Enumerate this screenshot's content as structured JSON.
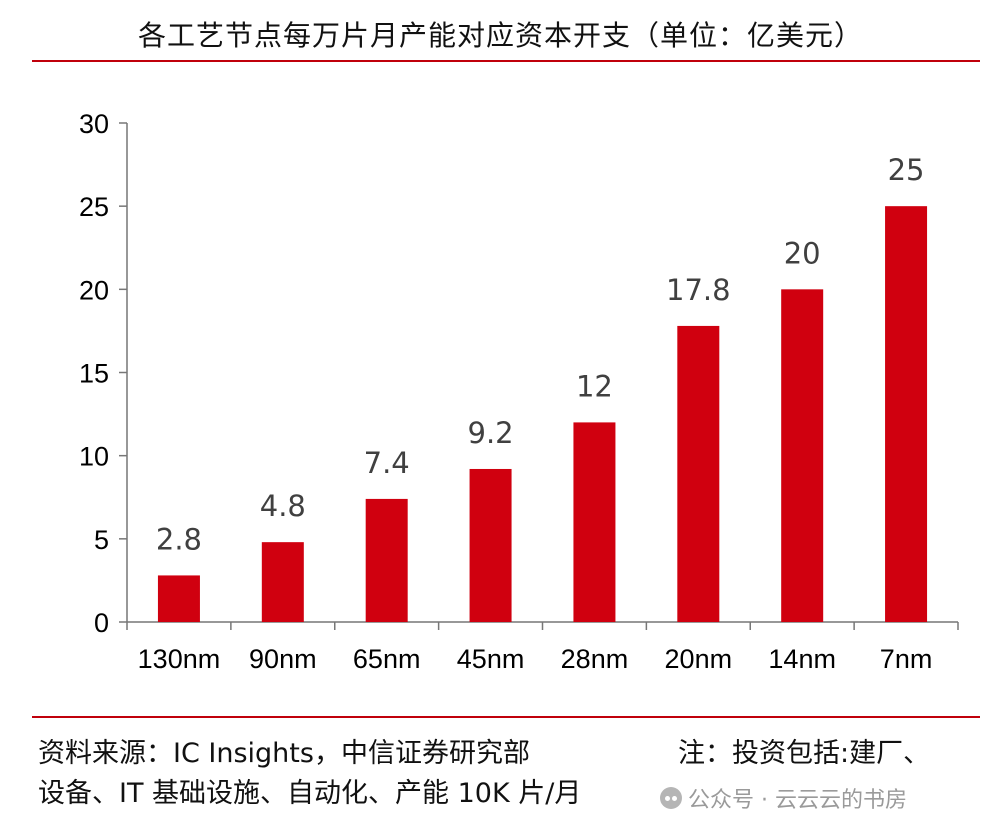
{
  "title": "各工艺节点每万片月产能对应资本开支（单位：亿美元）",
  "source": {
    "line1": "资料来源：IC Insights，中信证券研究部",
    "note": "注：投资包括:建厂、",
    "line2": "设备、IT 基础设施、自动化、产能 10K 片/月"
  },
  "watermark": "公众号 · 云云云的书房",
  "chart_data": {
    "type": "bar",
    "title": "各工艺节点每万片月产能对应资本开支（单位：亿美元）",
    "categories": [
      "130nm",
      "90nm",
      "65nm",
      "45nm",
      "28nm",
      "20nm",
      "14nm",
      "7nm"
    ],
    "values": [
      2.8,
      4.8,
      7.4,
      9.2,
      12,
      17.8,
      20,
      25
    ],
    "value_labels": [
      "2.8",
      "4.8",
      "7.4",
      "9.2",
      "12",
      "17.8",
      "20",
      "25"
    ],
    "ylim": [
      0,
      30
    ],
    "yticks": [
      0,
      5,
      10,
      15,
      20,
      25,
      30
    ],
    "xlabel": "",
    "ylabel": "",
    "grid": false,
    "bar_color": "#d0000f"
  }
}
